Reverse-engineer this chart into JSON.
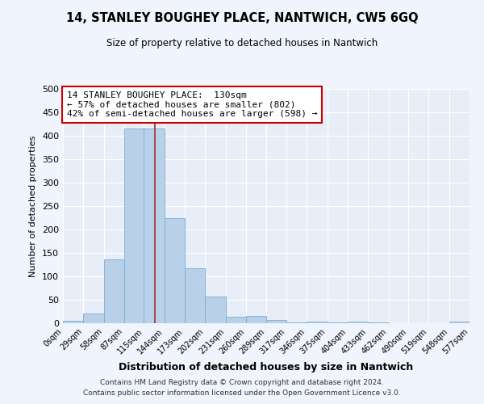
{
  "title": "14, STANLEY BOUGHEY PLACE, NANTWICH, CW5 6GQ",
  "subtitle": "Size of property relative to detached houses in Nantwich",
  "xlabel": "Distribution of detached houses by size in Nantwich",
  "ylabel": "Number of detached properties",
  "bar_color": "#b8d0e8",
  "bar_edge_color": "#7aaed4",
  "background_color": "#e8eef8",
  "grid_color": "#ffffff",
  "bin_edges": [
    0,
    29,
    58,
    87,
    115,
    144,
    173,
    202,
    231,
    260,
    289,
    317,
    346,
    375,
    404,
    433,
    462,
    490,
    519,
    548,
    577
  ],
  "bin_labels": [
    "0sqm",
    "29sqm",
    "58sqm",
    "87sqm",
    "115sqm",
    "144sqm",
    "173sqm",
    "202sqm",
    "231sqm",
    "260sqm",
    "289sqm",
    "317sqm",
    "346sqm",
    "375sqm",
    "404sqm",
    "433sqm",
    "462sqm",
    "490sqm",
    "519sqm",
    "548sqm",
    "577sqm"
  ],
  "bar_heights": [
    5,
    21,
    137,
    416,
    416,
    224,
    117,
    57,
    13,
    15,
    7,
    2,
    4,
    1,
    4,
    1,
    0,
    0,
    0,
    4
  ],
  "ylim": [
    0,
    500
  ],
  "yticks": [
    0,
    50,
    100,
    150,
    200,
    250,
    300,
    350,
    400,
    450,
    500
  ],
  "annotation_text": "14 STANLEY BOUGHEY PLACE:  130sqm\n← 57% of detached houses are smaller (802)\n42% of semi-detached houses are larger (598) →",
  "annotation_box_color": "#ffffff",
  "annotation_box_edgecolor": "#cc0000",
  "property_line_color": "#993333",
  "property_line_x": 130,
  "footer_line1": "Contains HM Land Registry data © Crown copyright and database right 2024.",
  "footer_line2": "Contains public sector information licensed under the Open Government Licence v3.0."
}
